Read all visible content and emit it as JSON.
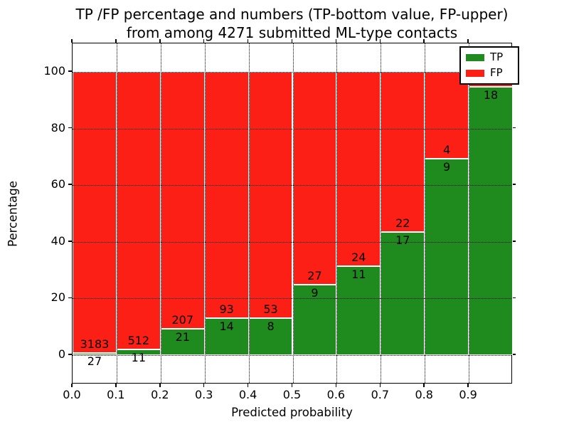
{
  "title": {
    "line1": "TP /FP percentage and numbers (TP-bottom value, FP-upper)",
    "line2": "from among 4271 submitted ML-type contacts"
  },
  "axes": {
    "xlabel": "Predicted probability",
    "ylabel": "Percentage",
    "yticks": [
      {
        "label": "0",
        "value": 0
      },
      {
        "label": "20",
        "value": 20
      },
      {
        "label": "40",
        "value": 40
      },
      {
        "label": "60",
        "value": 60
      },
      {
        "label": "80",
        "value": 80
      },
      {
        "label": "100",
        "value": 100
      }
    ],
    "xticks": [
      {
        "label": "0.0",
        "value": 0.0
      },
      {
        "label": "0.1",
        "value": 0.1
      },
      {
        "label": "0.2",
        "value": 0.2
      },
      {
        "label": "0.3",
        "value": 0.3
      },
      {
        "label": "0.4",
        "value": 0.4
      },
      {
        "label": "0.5",
        "value": 0.5
      },
      {
        "label": "0.6",
        "value": 0.6
      },
      {
        "label": "0.7",
        "value": 0.7
      },
      {
        "label": "0.8",
        "value": 0.8
      },
      {
        "label": "0.9",
        "value": 0.9
      }
    ]
  },
  "legend": {
    "items": [
      {
        "label": "TP",
        "color_key": "tp"
      },
      {
        "label": "FP",
        "color_key": "fp"
      }
    ]
  },
  "colors": {
    "tp": "#1f8b1f",
    "fp": "#fb1f15",
    "grid": "#000000",
    "bar_edge": "#ffffff",
    "text": "#000000"
  },
  "chart_data": {
    "type": "bar",
    "stacked": true,
    "title": "TP /FP percentage and numbers (TP-bottom value, FP-upper) from among 4271 submitted ML-type contacts",
    "xlabel": "Predicted probability",
    "ylabel": "Percentage",
    "xlim": [
      0.0,
      1.0
    ],
    "ylim": [
      -10.3,
      110.1
    ],
    "grid": true,
    "legend_position": "upper right",
    "bin_width": 0.1,
    "total_contacts": 4271,
    "bins": [
      {
        "x_start": 0.0,
        "tp_count": 27,
        "fp_count": 3183,
        "tp_pct": 0.84,
        "fp_pct": 99.16,
        "tp_label": "27",
        "fp_label": "3183"
      },
      {
        "x_start": 0.1,
        "tp_count": 11,
        "fp_count": 512,
        "tp_pct": 2.1,
        "fp_pct": 97.9,
        "tp_label": "11",
        "fp_label": "512"
      },
      {
        "x_start": 0.2,
        "tp_count": 21,
        "fp_count": 207,
        "tp_pct": 9.21,
        "fp_pct": 90.79,
        "tp_label": "21",
        "fp_label": "207"
      },
      {
        "x_start": 0.3,
        "tp_count": 14,
        "fp_count": 93,
        "tp_pct": 13.08,
        "fp_pct": 86.92,
        "tp_label": "14",
        "fp_label": "93"
      },
      {
        "x_start": 0.4,
        "tp_count": 8,
        "fp_count": 53,
        "tp_pct": 13.11,
        "fp_pct": 86.89,
        "tp_label": "8",
        "fp_label": "53"
      },
      {
        "x_start": 0.5,
        "tp_count": 9,
        "fp_count": 27,
        "tp_pct": 25.0,
        "fp_pct": 75.0,
        "tp_label": "9",
        "fp_label": "27"
      },
      {
        "x_start": 0.6,
        "tp_count": 11,
        "fp_count": 24,
        "tp_pct": 31.43,
        "fp_pct": 68.57,
        "tp_label": "11",
        "fp_label": "24"
      },
      {
        "x_start": 0.7,
        "tp_count": 17,
        "fp_count": 22,
        "tp_pct": 43.59,
        "fp_pct": 56.41,
        "tp_label": "17",
        "fp_label": "22"
      },
      {
        "x_start": 0.8,
        "tp_count": 9,
        "fp_count": 4,
        "tp_pct": 69.23,
        "fp_pct": 30.77,
        "tp_label": "9",
        "fp_label": "4"
      },
      {
        "x_start": 0.9,
        "tp_count": 18,
        "tp_pct": 94.74,
        "fp_pct": 5.26,
        "tp_label": "18",
        "fp_label": ""
      }
    ]
  }
}
